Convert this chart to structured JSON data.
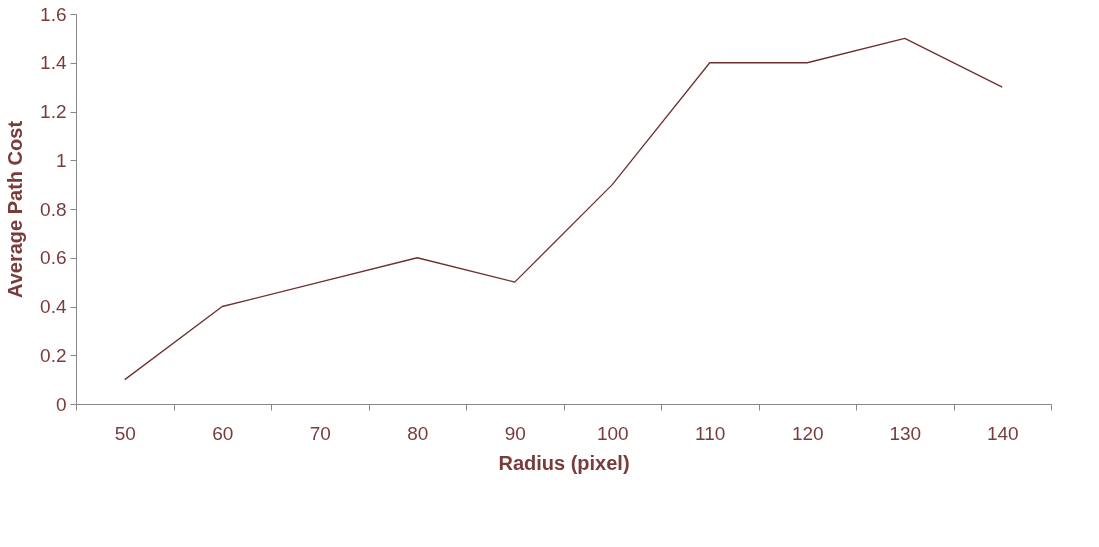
{
  "chart_data": {
    "type": "line",
    "xlabel": "Radius (pixel)",
    "ylabel": "Average Path Cost",
    "categories": [
      "50",
      "60",
      "70",
      "80",
      "90",
      "100",
      "110",
      "120",
      "130",
      "140"
    ],
    "series": [
      {
        "color": "#6e2f2f",
        "values": [
          0.1,
          0.4,
          0.5,
          0.6,
          0.5,
          0.9,
          1.4,
          1.4,
          1.5,
          1.3
        ]
      }
    ],
    "ylim": [
      0,
      1.6
    ],
    "yticks": [
      0,
      0.2,
      0.4,
      0.6,
      0.8,
      1,
      1.2,
      1.4,
      1.6
    ],
    "grid": false,
    "marker": "none",
    "line_style": "solid"
  }
}
